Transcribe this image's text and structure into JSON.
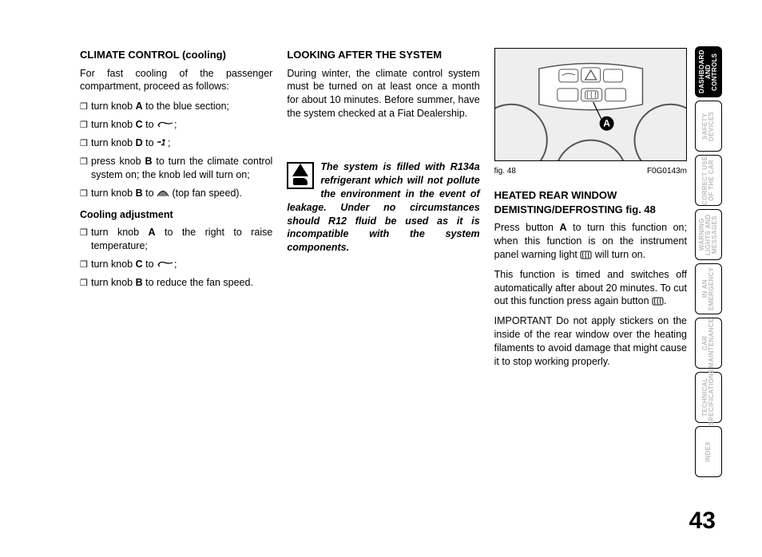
{
  "page_number": "43",
  "col1": {
    "h1": "CLIMATE CONTROL (cooling)",
    "intro": "For fast cooling of the passenger compartment, proceed as follows:",
    "b1_pre": "turn knob ",
    "b1_bold": "A",
    "b1_post": " to the blue section;",
    "b2_pre": "turn knob ",
    "b2_bold": "C",
    "b2_post": " to ",
    "b3_pre": "turn knob ",
    "b3_bold": "D",
    "b3_post": " to ",
    "b4_pre": "press knob ",
    "b4_bold": "B",
    "b4_post": " to turn the climate control system on; the knob led will turn on;",
    "b5_pre": "turn knob ",
    "b5_bold": "B",
    "b5_post1": " to ",
    "b5_post2": " (top fan speed).",
    "h2": "Cooling adjustment",
    "c1_pre": "turn knob ",
    "c1_bold": "A",
    "c1_post": " to the right to raise temperature;",
    "c2_pre": "turn knob ",
    "c2_bold": "C",
    "c2_post": " to ",
    "c3_pre": "turn knob ",
    "c3_bold": "B",
    "c3_post": " to reduce the fan speed."
  },
  "col2": {
    "h1": "LOOKING AFTER THE SYSTEM",
    "p1": "During winter, the climate control system must be turned on at least once a month for about 10 minutes. Before summer, have the system checked at a Fiat Dealership.",
    "warn": "The system is filled with R134a refrigerant which will not pollute the environment in the event of leakage. Under no circumstances should R12 fluid be used as it is incompatible with the system components."
  },
  "col3": {
    "fig_label": "fig. 48",
    "fig_code": "F0G0143m",
    "h1": "HEATED REAR WINDOW DEMISTING/DEFROSTING fig. 48",
    "p1_pre": "Press button ",
    "p1_bold": "A",
    "p1_mid": " to turn this function on; when this function is on the instrument panel warning light ",
    "p1_post": " will turn on.",
    "p2_pre": "This function is timed and switches off automatically after about 20 minutes. To cut out this function press again button ",
    "p2_post": ".",
    "p3": "IMPORTANT Do not apply stickers on the inside of the rear window over the heating filaments to avoid damage that might cause it to stop working properly."
  },
  "tabs": [
    {
      "label": "DASHBOARD AND CONTROLS",
      "active": true
    },
    {
      "label": "SAFETY DEVICES",
      "active": false
    },
    {
      "label": "CORRECT USE OF THE CAR",
      "active": false
    },
    {
      "label": "WARNING LIGHTS AND MESSAGES",
      "active": false
    },
    {
      "label": "IN AN EMERGENCY",
      "active": false
    },
    {
      "label": "CAR MAINTENANCE",
      "active": false
    },
    {
      "label": "TECHNICAL SPECIFICATIONS",
      "active": false
    },
    {
      "label": "INDEX",
      "active": false
    }
  ],
  "figure": {
    "bg": "#eeeeee",
    "stroke": "#555555",
    "label_A": "A"
  },
  "icons": {
    "recirc_color": "#000",
    "person_color": "#000",
    "fan_color": "#000",
    "defrost_color": "#000"
  }
}
